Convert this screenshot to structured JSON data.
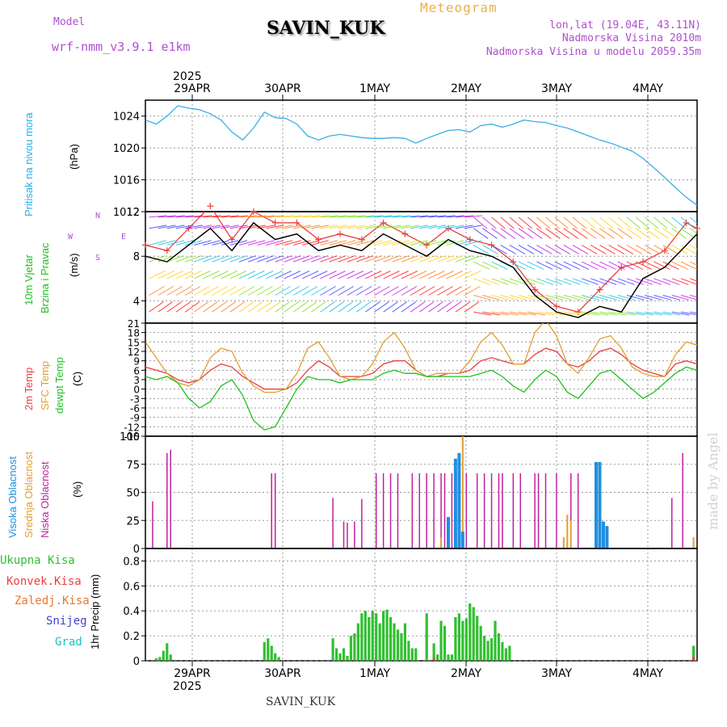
{
  "header": {
    "model_label": "Model",
    "model_name": "wrf-nmm_v3.9.1 e1km",
    "station": "SAVIN_KUK",
    "meteogram": "Meteogram",
    "lonlat": "lon,lat (19.04E, 43.11N)",
    "altitude": "Nadmorska Visina 2010m",
    "model_altitude": "Nadmorska Visina u modelu 2059.35m"
  },
  "footer": {
    "station": "SAVIN_KUK"
  },
  "watermark": "made by Angel",
  "time_axis": {
    "year": "2025",
    "days": [
      "29APR",
      "30APR",
      "1MAY",
      "2MAY",
      "3MAY",
      "4MAY"
    ]
  },
  "panel_labels": {
    "pressure": {
      "name": "Pritisak na nivou mora",
      "unit": "(hPa)"
    },
    "wind": {
      "name1": "10m Vjetar",
      "name2": "Brzina i Pravac",
      "unit": "(m/s)",
      "compass_w": "W",
      "compass_e": "E",
      "compass_n": "N",
      "compass_s": "S"
    },
    "temp": {
      "t2m": "2m Temp",
      "sfc": "SFC Temp",
      "dew": "dewpt Temp",
      "unit": "(C)"
    },
    "cloud": {
      "high": "Visoka Oblacnost",
      "mid": "Srednja Oblacnost",
      "low": "Niska Oblacnost",
      "unit": "(%)"
    },
    "precip": {
      "total": "Ukupna Kisa",
      "conv": "Konvek.Kisa",
      "frz": "Zaledj.Kisa",
      "snow": "Snijeg",
      "hail": "Grad",
      "unit": "1hr Precip (mm)"
    }
  },
  "colors": {
    "pressure": "#3aaee8",
    "t2m": "#e84040",
    "sfc": "#e0a030",
    "dew": "#20c020",
    "high": "#2090e0",
    "mid": "#e0a030",
    "low": "#c020a0",
    "precip_total": "#30c030",
    "precip_conv": "#e84040",
    "precip_frz": "#e87830",
    "snow": "#4040d0",
    "hail": "#20c0c0",
    "wind_speed": "#000000",
    "gust": "#e84040"
  },
  "chart_data": [
    {
      "type": "line",
      "ylabel": "(hPa)",
      "ylim": [
        1012,
        1026
      ],
      "yticks": [
        "1024",
        "1020",
        "1016",
        "1012"
      ],
      "x_hours_from_start": [
        0,
        3,
        6,
        9,
        12,
        15,
        18,
        21,
        24,
        27,
        30,
        33,
        36,
        39,
        42,
        45,
        48,
        51,
        54,
        57,
        60,
        63,
        66,
        69,
        72,
        75,
        78,
        81,
        84,
        87,
        90,
        93,
        96,
        99,
        102,
        105,
        108,
        111,
        114,
        117,
        120,
        123,
        126,
        129,
        132,
        135,
        138,
        141,
        144,
        147,
        150,
        153
      ],
      "series": [
        {
          "name": "Pritisak na nivou mora",
          "values": [
            1023.5,
            1023,
            1024,
            1025.3,
            1025,
            1024.8,
            1024.3,
            1023.5,
            1022,
            1021,
            1022.5,
            1024.5,
            1023.8,
            1023.7,
            1023,
            1021.5,
            1021,
            1021.5,
            1021.7,
            1021.5,
            1021.3,
            1021.2,
            1021.2,
            1021.3,
            1021.2,
            1020.6,
            1021.2,
            1021.7,
            1022.2,
            1022.3,
            1022,
            1022.8,
            1023,
            1022.6,
            1023,
            1023.5,
            1023.3,
            1023.2,
            1022.8,
            1022.5,
            1022,
            1021.5,
            1021,
            1020.6,
            1020.1,
            1019.6,
            1018.7,
            1017.5,
            1016.3,
            1015,
            1013.8,
            1012.8
          ]
        }
      ]
    },
    {
      "type": "line",
      "ylabel": "(m/s)",
      "ylim": [
        2,
        12
      ],
      "yticks": [
        "12",
        "8",
        "4"
      ],
      "x_hours_from_start": [
        0,
        6,
        12,
        18,
        24,
        30,
        36,
        42,
        48,
        54,
        60,
        66,
        72,
        78,
        84,
        90,
        96,
        102,
        108,
        114,
        120,
        126,
        132,
        138,
        144,
        150,
        153
      ],
      "series": [
        {
          "name": "speed",
          "values": [
            8,
            7.5,
            9,
            10.5,
            8.5,
            11,
            9.5,
            10,
            8.5,
            9,
            8.5,
            10,
            9,
            8,
            9.5,
            8.5,
            8,
            7,
            4.5,
            3,
            2.5,
            3.5,
            3,
            6,
            7,
            9,
            10
          ]
        },
        {
          "name": "gust",
          "values": [
            9,
            8.5,
            10.5,
            12.5,
            9.5,
            12,
            11,
            11,
            9.5,
            10,
            9.5,
            11,
            10,
            9,
            10.5,
            9.5,
            9,
            7.5,
            5,
            3.5,
            3,
            5,
            7,
            7.5,
            8.5,
            11,
            10.5
          ]
        }
      ]
    },
    {
      "type": "line",
      "ylabel": "(C)",
      "ylim": [
        -15,
        21
      ],
      "yticks": [
        "21",
        "18",
        "15",
        "12",
        "9",
        "6",
        "3",
        "0",
        "-3",
        "-6",
        "-9",
        "-12",
        "-15"
      ],
      "x_hours_from_start": [
        0,
        3,
        6,
        9,
        12,
        15,
        18,
        21,
        24,
        27,
        30,
        33,
        36,
        39,
        42,
        45,
        48,
        51,
        54,
        57,
        60,
        63,
        66,
        69,
        72,
        75,
        78,
        81,
        84,
        87,
        90,
        93,
        96,
        99,
        102,
        105,
        108,
        111,
        114,
        117,
        120,
        123,
        126,
        129,
        132,
        135,
        138,
        141,
        144,
        147,
        150,
        153
      ],
      "series": [
        {
          "name": "2m Temp",
          "values": [
            7,
            6,
            5,
            3,
            2,
            3,
            6,
            8,
            7,
            4,
            2,
            0,
            0,
            0,
            2,
            6,
            9,
            7,
            4,
            4,
            4,
            5,
            8,
            9,
            9,
            6,
            4,
            4,
            5,
            5,
            6,
            9,
            10,
            9,
            8,
            8,
            11,
            13,
            12,
            8,
            7,
            9,
            12,
            13,
            11,
            8,
            6,
            5,
            4,
            8,
            9,
            8
          ]
        },
        {
          "name": "SFC Temp",
          "values": [
            15,
            10,
            5,
            2,
            1,
            3,
            10,
            13,
            12,
            5,
            1,
            -1,
            -1,
            0,
            5,
            13,
            15,
            10,
            4,
            3,
            4,
            8,
            15,
            18,
            13,
            6,
            4,
            5,
            5,
            5,
            9,
            15,
            18,
            14,
            8,
            8,
            18,
            22,
            17,
            8,
            5,
            10,
            16,
            17,
            13,
            7,
            5,
            4,
            4,
            11,
            15,
            14
          ]
        },
        {
          "name": "dewpt Temp",
          "values": [
            4,
            3,
            4,
            2,
            -3,
            -6,
            -4,
            1,
            3,
            -2,
            -10,
            -13,
            -12,
            -6,
            0,
            4,
            3,
            3,
            2,
            3,
            3,
            3,
            5,
            6,
            5,
            5,
            4,
            4,
            4,
            4,
            4,
            5,
            6,
            4,
            1,
            -1,
            3,
            6,
            4,
            -1,
            -3,
            1,
            5,
            6,
            3,
            0,
            -3,
            -1,
            2,
            5,
            7,
            6
          ]
        }
      ]
    },
    {
      "type": "bar",
      "ylabel": "(%)",
      "ylim": [
        0,
        100
      ],
      "yticks": [
        "100",
        "75",
        "50",
        "25",
        "0"
      ],
      "series": [
        {
          "name": "Niska Oblacnost",
          "x_hours_from_start": [
            2,
            6,
            7,
            35,
            36,
            52,
            55,
            56,
            58,
            60,
            64,
            66,
            68,
            70,
            74,
            76,
            78,
            80,
            82,
            83,
            85,
            89,
            92,
            94,
            96,
            98,
            99,
            102,
            104,
            108,
            109,
            111,
            114,
            118,
            120,
            146,
            149
          ],
          "values": [
            42,
            85,
            88,
            67,
            67,
            45,
            24,
            23,
            24,
            44,
            67,
            67,
            67,
            67,
            67,
            67,
            67,
            67,
            67,
            67,
            67,
            67,
            67,
            67,
            67,
            67,
            67,
            67,
            67,
            67,
            67,
            67,
            67,
            67,
            67,
            45,
            85
          ]
        },
        {
          "name": "Srednja Oblacnost",
          "x_hours_from_start": [
            82,
            84,
            86,
            87,
            88,
            116,
            117,
            118,
            152
          ],
          "values": [
            10,
            28,
            30,
            80,
            100,
            10,
            30,
            25,
            10
          ]
        },
        {
          "name": "Visoka Oblacnost",
          "x_hours_from_start": [
            84,
            86,
            87,
            88,
            125,
            126,
            127,
            128
          ],
          "values": [
            28,
            80,
            85,
            15,
            77,
            77,
            24,
            20
          ]
        }
      ]
    },
    {
      "type": "bar",
      "ylabel": "1hr Precip (mm)",
      "ylim": [
        0,
        0.9
      ],
      "yticks": [
        "0.8",
        "0.6",
        "0.4",
        "0.2",
        "0"
      ],
      "series": [
        {
          "name": "Ukupna Kisa",
          "x_hours_from_start": [
            3,
            4,
            5,
            6,
            7,
            33,
            34,
            35,
            36,
            37,
            52,
            53,
            54,
            55,
            56,
            57,
            58,
            59,
            60,
            61,
            62,
            63,
            64,
            65,
            66,
            67,
            68,
            69,
            70,
            71,
            72,
            73,
            74,
            75,
            78,
            80,
            81,
            82,
            83,
            84,
            85,
            86,
            87,
            88,
            89,
            90,
            91,
            92,
            93,
            94,
            95,
            96,
            97,
            98,
            99,
            100,
            101,
            152
          ],
          "values": [
            0.02,
            0.03,
            0.08,
            0.14,
            0.05,
            0.15,
            0.18,
            0.12,
            0.06,
            0.03,
            0.18,
            0.1,
            0.06,
            0.1,
            0.04,
            0.2,
            0.22,
            0.3,
            0.38,
            0.4,
            0.35,
            0.4,
            0.38,
            0.3,
            0.4,
            0.41,
            0.35,
            0.3,
            0.25,
            0.22,
            0.3,
            0.16,
            0.1,
            0.1,
            0.38,
            0.14,
            0.05,
            0.32,
            0.28,
            0.05,
            0.05,
            0.35,
            0.38,
            0.32,
            0.34,
            0.46,
            0.43,
            0.36,
            0.28,
            0.2,
            0.16,
            0.18,
            0.32,
            0.22,
            0.15,
            0.1,
            0.12,
            0.12
          ]
        },
        {
          "name": "Konvek.Kisa",
          "x_hours_from_start": [
            80,
            152
          ],
          "values": [
            0.02,
            0.03
          ]
        }
      ]
    }
  ]
}
